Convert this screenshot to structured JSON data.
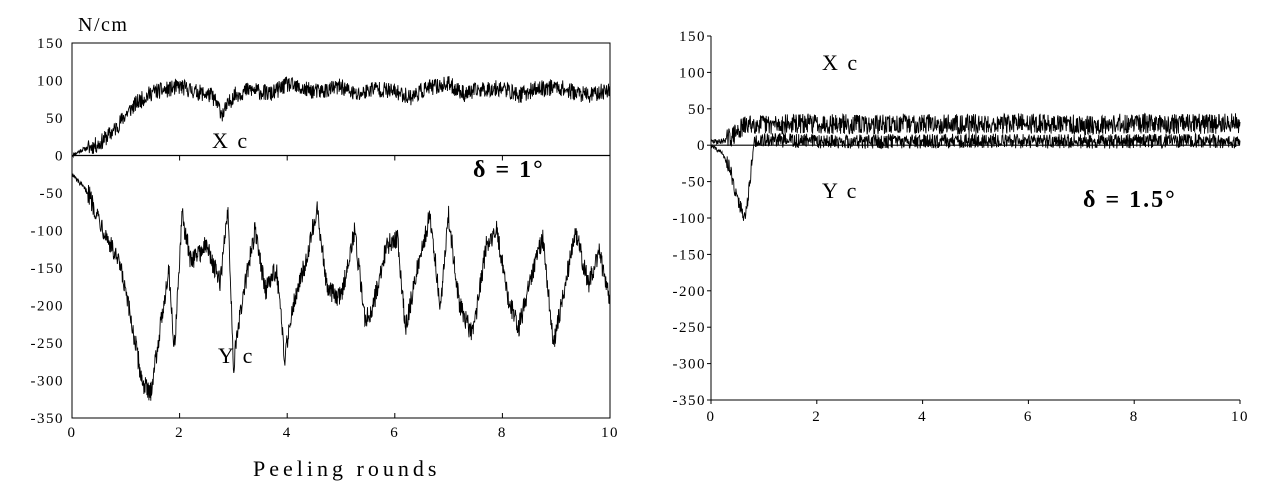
{
  "xlabel": "Peeling rounds",
  "chart_data": [
    {
      "type": "line",
      "unit_label": "N/cm",
      "xlim": [
        0,
        10
      ],
      "ylim": [
        -350,
        150
      ],
      "xticks": [
        0,
        2,
        4,
        6,
        8,
        10
      ],
      "yticks": [
        150,
        100,
        50,
        0,
        -50,
        -100,
        -150,
        -200,
        -250,
        -300,
        -350
      ],
      "ytick_labels": [
        "150",
        "100",
        "50",
        "0",
        "-50",
        "-100",
        "-150",
        "-200",
        "-250",
        "-300",
        "-350"
      ],
      "delta_label": "δ = 1°",
      "series": [
        {
          "name": "Xc",
          "amp": 11,
          "values": [
            [
              0,
              0
            ],
            [
              0.2,
              8
            ],
            [
              0.5,
              15
            ],
            [
              0.8,
              35
            ],
            [
              1.0,
              55
            ],
            [
              1.2,
              70
            ],
            [
              1.5,
              85
            ],
            [
              1.8,
              88
            ],
            [
              2.0,
              92
            ],
            [
              2.3,
              85
            ],
            [
              2.6,
              80
            ],
            [
              2.8,
              55
            ],
            [
              3.0,
              80
            ],
            [
              3.3,
              88
            ],
            [
              3.7,
              82
            ],
            [
              4.0,
              95
            ],
            [
              4.3,
              88
            ],
            [
              4.6,
              85
            ],
            [
              5.0,
              92
            ],
            [
              5.3,
              80
            ],
            [
              5.6,
              90
            ],
            [
              6.0,
              85
            ],
            [
              6.3,
              78
            ],
            [
              6.6,
              90
            ],
            [
              7.0,
              95
            ],
            [
              7.3,
              82
            ],
            [
              7.6,
              88
            ],
            [
              8.0,
              90
            ],
            [
              8.3,
              80
            ],
            [
              8.6,
              88
            ],
            [
              9.0,
              92
            ],
            [
              9.3,
              85
            ],
            [
              9.6,
              80
            ],
            [
              10.0,
              88
            ]
          ]
        },
        {
          "name": "Yc",
          "amp": 14,
          "values": [
            [
              0,
              -25
            ],
            [
              0.3,
              -50
            ],
            [
              0.6,
              -100
            ],
            [
              0.9,
              -150
            ],
            [
              1.1,
              -220
            ],
            [
              1.3,
              -300
            ],
            [
              1.45,
              -320
            ],
            [
              1.6,
              -250
            ],
            [
              1.8,
              -150
            ],
            [
              1.9,
              -260
            ],
            [
              2.05,
              -80
            ],
            [
              2.2,
              -140
            ],
            [
              2.5,
              -120
            ],
            [
              2.75,
              -170
            ],
            [
              2.9,
              -70
            ],
            [
              3.0,
              -280
            ],
            [
              3.15,
              -200
            ],
            [
              3.4,
              -100
            ],
            [
              3.6,
              -180
            ],
            [
              3.8,
              -150
            ],
            [
              3.95,
              -270
            ],
            [
              4.1,
              -200
            ],
            [
              4.35,
              -140
            ],
            [
              4.55,
              -70
            ],
            [
              4.75,
              -180
            ],
            [
              5.0,
              -190
            ],
            [
              5.25,
              -100
            ],
            [
              5.45,
              -220
            ],
            [
              5.6,
              -200
            ],
            [
              5.85,
              -120
            ],
            [
              6.05,
              -110
            ],
            [
              6.2,
              -230
            ],
            [
              6.45,
              -140
            ],
            [
              6.65,
              -80
            ],
            [
              6.85,
              -200
            ],
            [
              7.0,
              -80
            ],
            [
              7.2,
              -200
            ],
            [
              7.45,
              -240
            ],
            [
              7.7,
              -120
            ],
            [
              7.9,
              -100
            ],
            [
              8.1,
              -190
            ],
            [
              8.3,
              -230
            ],
            [
              8.55,
              -160
            ],
            [
              8.75,
              -110
            ],
            [
              8.95,
              -250
            ],
            [
              9.1,
              -200
            ],
            [
              9.35,
              -100
            ],
            [
              9.6,
              -170
            ],
            [
              9.8,
              -130
            ],
            [
              10.0,
              -190
            ]
          ]
        }
      ]
    },
    {
      "type": "line",
      "xlim": [
        0,
        10
      ],
      "ylim": [
        -350,
        150
      ],
      "xticks": [
        0,
        2,
        4,
        6,
        8,
        10
      ],
      "yticks": [
        150,
        100,
        50,
        0,
        -50,
        -100,
        -150,
        -200,
        -250,
        -300,
        -350
      ],
      "ytick_labels": [
        "150",
        "100",
        "50",
        "0",
        "-50",
        "-100",
        "-150",
        "-200",
        "-250",
        "-300",
        "-350"
      ],
      "delta_label": "δ = 1.5°",
      "series": [
        {
          "name": "Xc",
          "amp": 14,
          "values": [
            [
              0,
              5
            ],
            [
              0.2,
              5
            ],
            [
              0.4,
              12
            ],
            [
              0.6,
              25
            ],
            [
              0.8,
              30
            ],
            [
              1.0,
              28
            ],
            [
              2.0,
              30
            ],
            [
              3.0,
              28
            ],
            [
              4.0,
              30
            ],
            [
              5.0,
              29
            ],
            [
              6.0,
              30
            ],
            [
              7.0,
              28
            ],
            [
              8.0,
              30
            ],
            [
              9.0,
              29
            ],
            [
              10.0,
              30
            ]
          ]
        },
        {
          "name": "Yc",
          "amp": 10,
          "values": [
            [
              0,
              0
            ],
            [
              0.2,
              -10
            ],
            [
              0.35,
              -30
            ],
            [
              0.5,
              -75
            ],
            [
              0.65,
              -100
            ],
            [
              0.72,
              -60
            ],
            [
              0.8,
              0
            ],
            [
              0.9,
              8
            ],
            [
              1.5,
              6
            ],
            [
              3.0,
              5
            ],
            [
              5.0,
              6
            ],
            [
              7.0,
              5
            ],
            [
              9.0,
              6
            ],
            [
              10.0,
              5
            ]
          ]
        }
      ]
    }
  ],
  "left_labels": {
    "xc": "X c",
    "yc": "Y c"
  },
  "right_labels": {
    "xc": "X c",
    "yc": "Y c"
  }
}
